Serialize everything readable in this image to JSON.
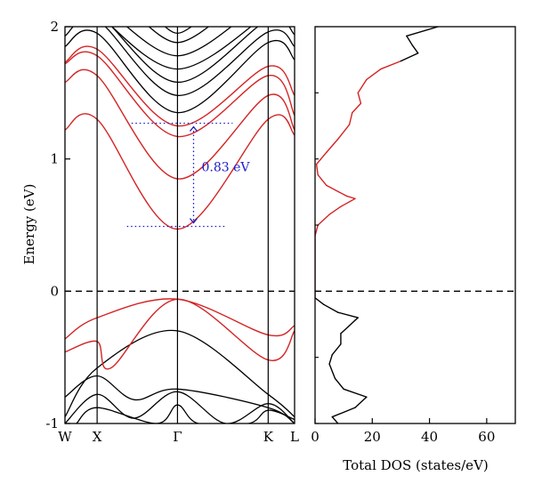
{
  "chart_data": [
    {
      "type": "line",
      "panel": "band-structure",
      "ylabel": "Energy (eV)",
      "ylim": [
        -1,
        2
      ],
      "yticks": [
        -1,
        0,
        1,
        2
      ],
      "xlim": [
        0,
        1
      ],
      "kpoints": [
        {
          "label": "W",
          "x": 0.0
        },
        {
          "label": "X",
          "x": 0.14
        },
        {
          "label": "Γ",
          "x": 0.49
        },
        {
          "label": "K",
          "x": 0.885
        },
        {
          "label": "L",
          "x": 1.0
        }
      ],
      "fermi_level": 0,
      "gap": {
        "value_label": "0.83 eV",
        "vbm_top": 1.27,
        "cbm": 0.49,
        "x": 0.56
      },
      "colors": {
        "highlight": "#d42424",
        "other": "#000000",
        "annotation": "#1a1acc"
      },
      "red_bands": [
        {
          "name": "",
          "x": [
            0,
            0.14,
            0.49,
            0.885,
            1.0
          ],
          "y": [
            1.22,
            1.3,
            0.47,
            1.3,
            1.18
          ]
        },
        {
          "name": "",
          "x": [
            0,
            0.14,
            0.49,
            0.885,
            1.0
          ],
          "y": [
            1.58,
            1.63,
            0.85,
            1.48,
            1.22
          ]
        },
        {
          "name": "",
          "x": [
            0,
            0.14,
            0.49,
            0.885,
            1.0
          ],
          "y": [
            1.72,
            1.78,
            1.17,
            1.63,
            1.33
          ]
        },
        {
          "name": "",
          "x": [
            0,
            0.14,
            0.49,
            0.885,
            1.0
          ],
          "y": [
            1.73,
            1.83,
            1.25,
            1.7,
            1.48
          ]
        },
        {
          "name": "",
          "x": [
            0,
            0.14,
            0.49,
            0.885,
            1.0
          ],
          "y": [
            -0.36,
            -0.2,
            -0.06,
            -0.33,
            -0.26
          ]
        },
        {
          "name": "",
          "x": [
            0,
            0.14,
            0.2,
            0.49,
            0.885,
            1.0
          ],
          "y": [
            -0.46,
            -0.38,
            -0.58,
            -0.06,
            -0.52,
            -0.3
          ]
        }
      ],
      "black_bands": [
        {
          "name": "",
          "x": [
            0,
            0.14,
            0.49,
            0.885,
            1.0
          ],
          "y": [
            1.85,
            1.95,
            1.35,
            1.88,
            1.75
          ]
        },
        {
          "name": "",
          "x": [
            0,
            0.14,
            0.49,
            0.885,
            1.0
          ],
          "y": [
            1.93,
            2.05,
            1.48,
            1.96,
            1.85
          ]
        },
        {
          "name": "",
          "x": [
            0,
            0.14,
            0.49,
            0.885,
            1.0
          ],
          "y": [
            2.05,
            2.1,
            1.58,
            2.05,
            1.94
          ]
        },
        {
          "name": "",
          "x": [
            0.14,
            0.49,
            0.885
          ],
          "y": [
            2.1,
            1.68,
            2.1
          ]
        },
        {
          "name": "",
          "x": [
            0.2,
            0.49,
            0.8
          ],
          "y": [
            2.1,
            1.78,
            2.1
          ]
        },
        {
          "name": "",
          "x": [
            0.3,
            0.49,
            0.7
          ],
          "y": [
            2.1,
            1.88,
            2.1
          ]
        },
        {
          "name": "",
          "x": [
            0.38,
            0.49,
            0.62
          ],
          "y": [
            2.1,
            1.95,
            2.1
          ]
        },
        {
          "name": "",
          "x": [
            0.42,
            0.49,
            0.56
          ],
          "y": [
            2.1,
            2.0,
            2.1
          ]
        },
        {
          "name": "",
          "x": [
            0,
            0.14,
            0.49,
            0.885,
            1.0
          ],
          "y": [
            -0.95,
            -0.58,
            -0.3,
            -0.78,
            -0.95
          ]
        },
        {
          "name": "",
          "x": [
            0,
            0.14,
            0.3,
            0.49,
            0.885,
            1.0
          ],
          "y": [
            -0.8,
            -0.64,
            -0.82,
            -0.74,
            -0.88,
            -1.0
          ]
        },
        {
          "name": "",
          "x": [
            0,
            0.14,
            0.3,
            0.49,
            0.7,
            0.885,
            1.0
          ],
          "y": [
            -1.0,
            -0.78,
            -0.96,
            -0.76,
            -1.0,
            -0.85,
            -1.0
          ]
        },
        {
          "name": "",
          "x": [
            0.05,
            0.14,
            0.4,
            0.49,
            0.58,
            0.8,
            0.885,
            1.0
          ],
          "y": [
            -1.0,
            -0.88,
            -1.0,
            -0.86,
            -1.0,
            -1.0,
            -0.9,
            -0.97
          ]
        }
      ]
    },
    {
      "type": "line",
      "panel": "total-dos",
      "xlabel": "Total DOS (states/eV)",
      "xlim": [
        0,
        70
      ],
      "xticks": [
        0,
        20,
        40,
        60
      ],
      "ylim": [
        -1,
        2
      ],
      "fermi_level": 0,
      "highlight_range": [
        -0.05,
        1.75
      ],
      "curve": {
        "name": "",
        "energy": [
          -1.0,
          -0.95,
          -0.88,
          -0.8,
          -0.74,
          -0.66,
          -0.55,
          -0.48,
          -0.4,
          -0.32,
          -0.26,
          -0.22,
          -0.2,
          -0.16,
          -0.1,
          -0.05,
          0.0,
          0.42,
          0.5,
          0.58,
          0.64,
          0.7,
          0.72,
          0.8,
          0.88,
          0.96,
          1.05,
          1.15,
          1.26,
          1.35,
          1.42,
          1.5,
          1.6,
          1.68,
          1.74,
          1.8,
          1.86,
          1.93,
          2.0
        ],
        "dos": [
          8,
          6,
          14,
          18,
          10,
          7,
          5,
          6,
          9,
          9,
          12,
          14,
          15,
          8,
          3,
          0,
          0,
          0,
          1,
          5,
          9,
          14,
          11,
          4,
          1,
          0.5,
          4,
          8,
          12,
          13,
          16,
          15,
          18,
          23,
          30,
          36,
          34,
          32,
          43
        ]
      }
    }
  ]
}
